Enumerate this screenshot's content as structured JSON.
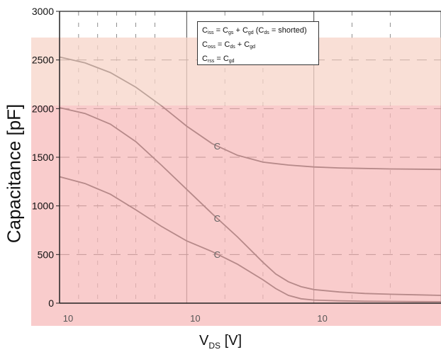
{
  "chart_data": {
    "type": "line",
    "title": "",
    "xlabel": {
      "main": "V",
      "sub": "DS",
      "unit": "[V]"
    },
    "ylabel": "Capacitance  [pF]",
    "x_ticks": [
      "10",
      "10",
      "10"
    ],
    "y_ticks": [
      0,
      500,
      1000,
      1500,
      2000,
      2500,
      3000
    ],
    "xlim": [
      0,
      30
    ],
    "ylim": [
      0,
      3000
    ],
    "grid": true,
    "legend_position": "top-center",
    "legend_lines": [
      {
        "parts": [
          "C",
          "iss",
          " = C",
          "gs",
          " + C",
          "gd",
          " (C",
          "ds",
          " = shorted)"
        ]
      },
      {
        "parts": [
          "C",
          "oss",
          " = C",
          "ds",
          " + C",
          "gd"
        ]
      },
      {
        "parts": [
          "C",
          "rss",
          " = C",
          "gd"
        ]
      }
    ],
    "series": [
      {
        "x": [
          0,
          2,
          4,
          6,
          8,
          10,
          12,
          14,
          16,
          18,
          20,
          22,
          24,
          26,
          28,
          30
        ],
        "values": [
          2530,
          2470,
          2370,
          2220,
          2030,
          1820,
          1640,
          1520,
          1450,
          1420,
          1400,
          1390,
          1385,
          1380,
          1378,
          1375
        ],
        "curve_label": "C"
      },
      {
        "x": [
          0,
          2,
          4,
          6,
          8,
          10,
          12,
          14,
          16,
          17,
          18,
          19,
          20,
          22,
          24,
          26,
          28,
          30
        ],
        "values": [
          2010,
          1950,
          1840,
          1660,
          1420,
          1170,
          920,
          680,
          420,
          300,
          220,
          170,
          140,
          115,
          100,
          92,
          86,
          80
        ],
        "curve_label": "C"
      },
      {
        "x": [
          0,
          2,
          4,
          6,
          8,
          10,
          12,
          14,
          16,
          17,
          18,
          19,
          20,
          22,
          24,
          26,
          28,
          30
        ],
        "values": [
          1300,
          1230,
          1120,
          960,
          790,
          640,
          530,
          400,
          240,
          150,
          80,
          45,
          32,
          24,
          20,
          18,
          16,
          15
        ],
        "curve_label": "C"
      }
    ],
    "colors": {
      "axis": "#222222",
      "grid": "#444444",
      "curve": "#111111",
      "overlay_light": "#f7d4c8",
      "overlay_strong": "#f7b8b8"
    }
  }
}
